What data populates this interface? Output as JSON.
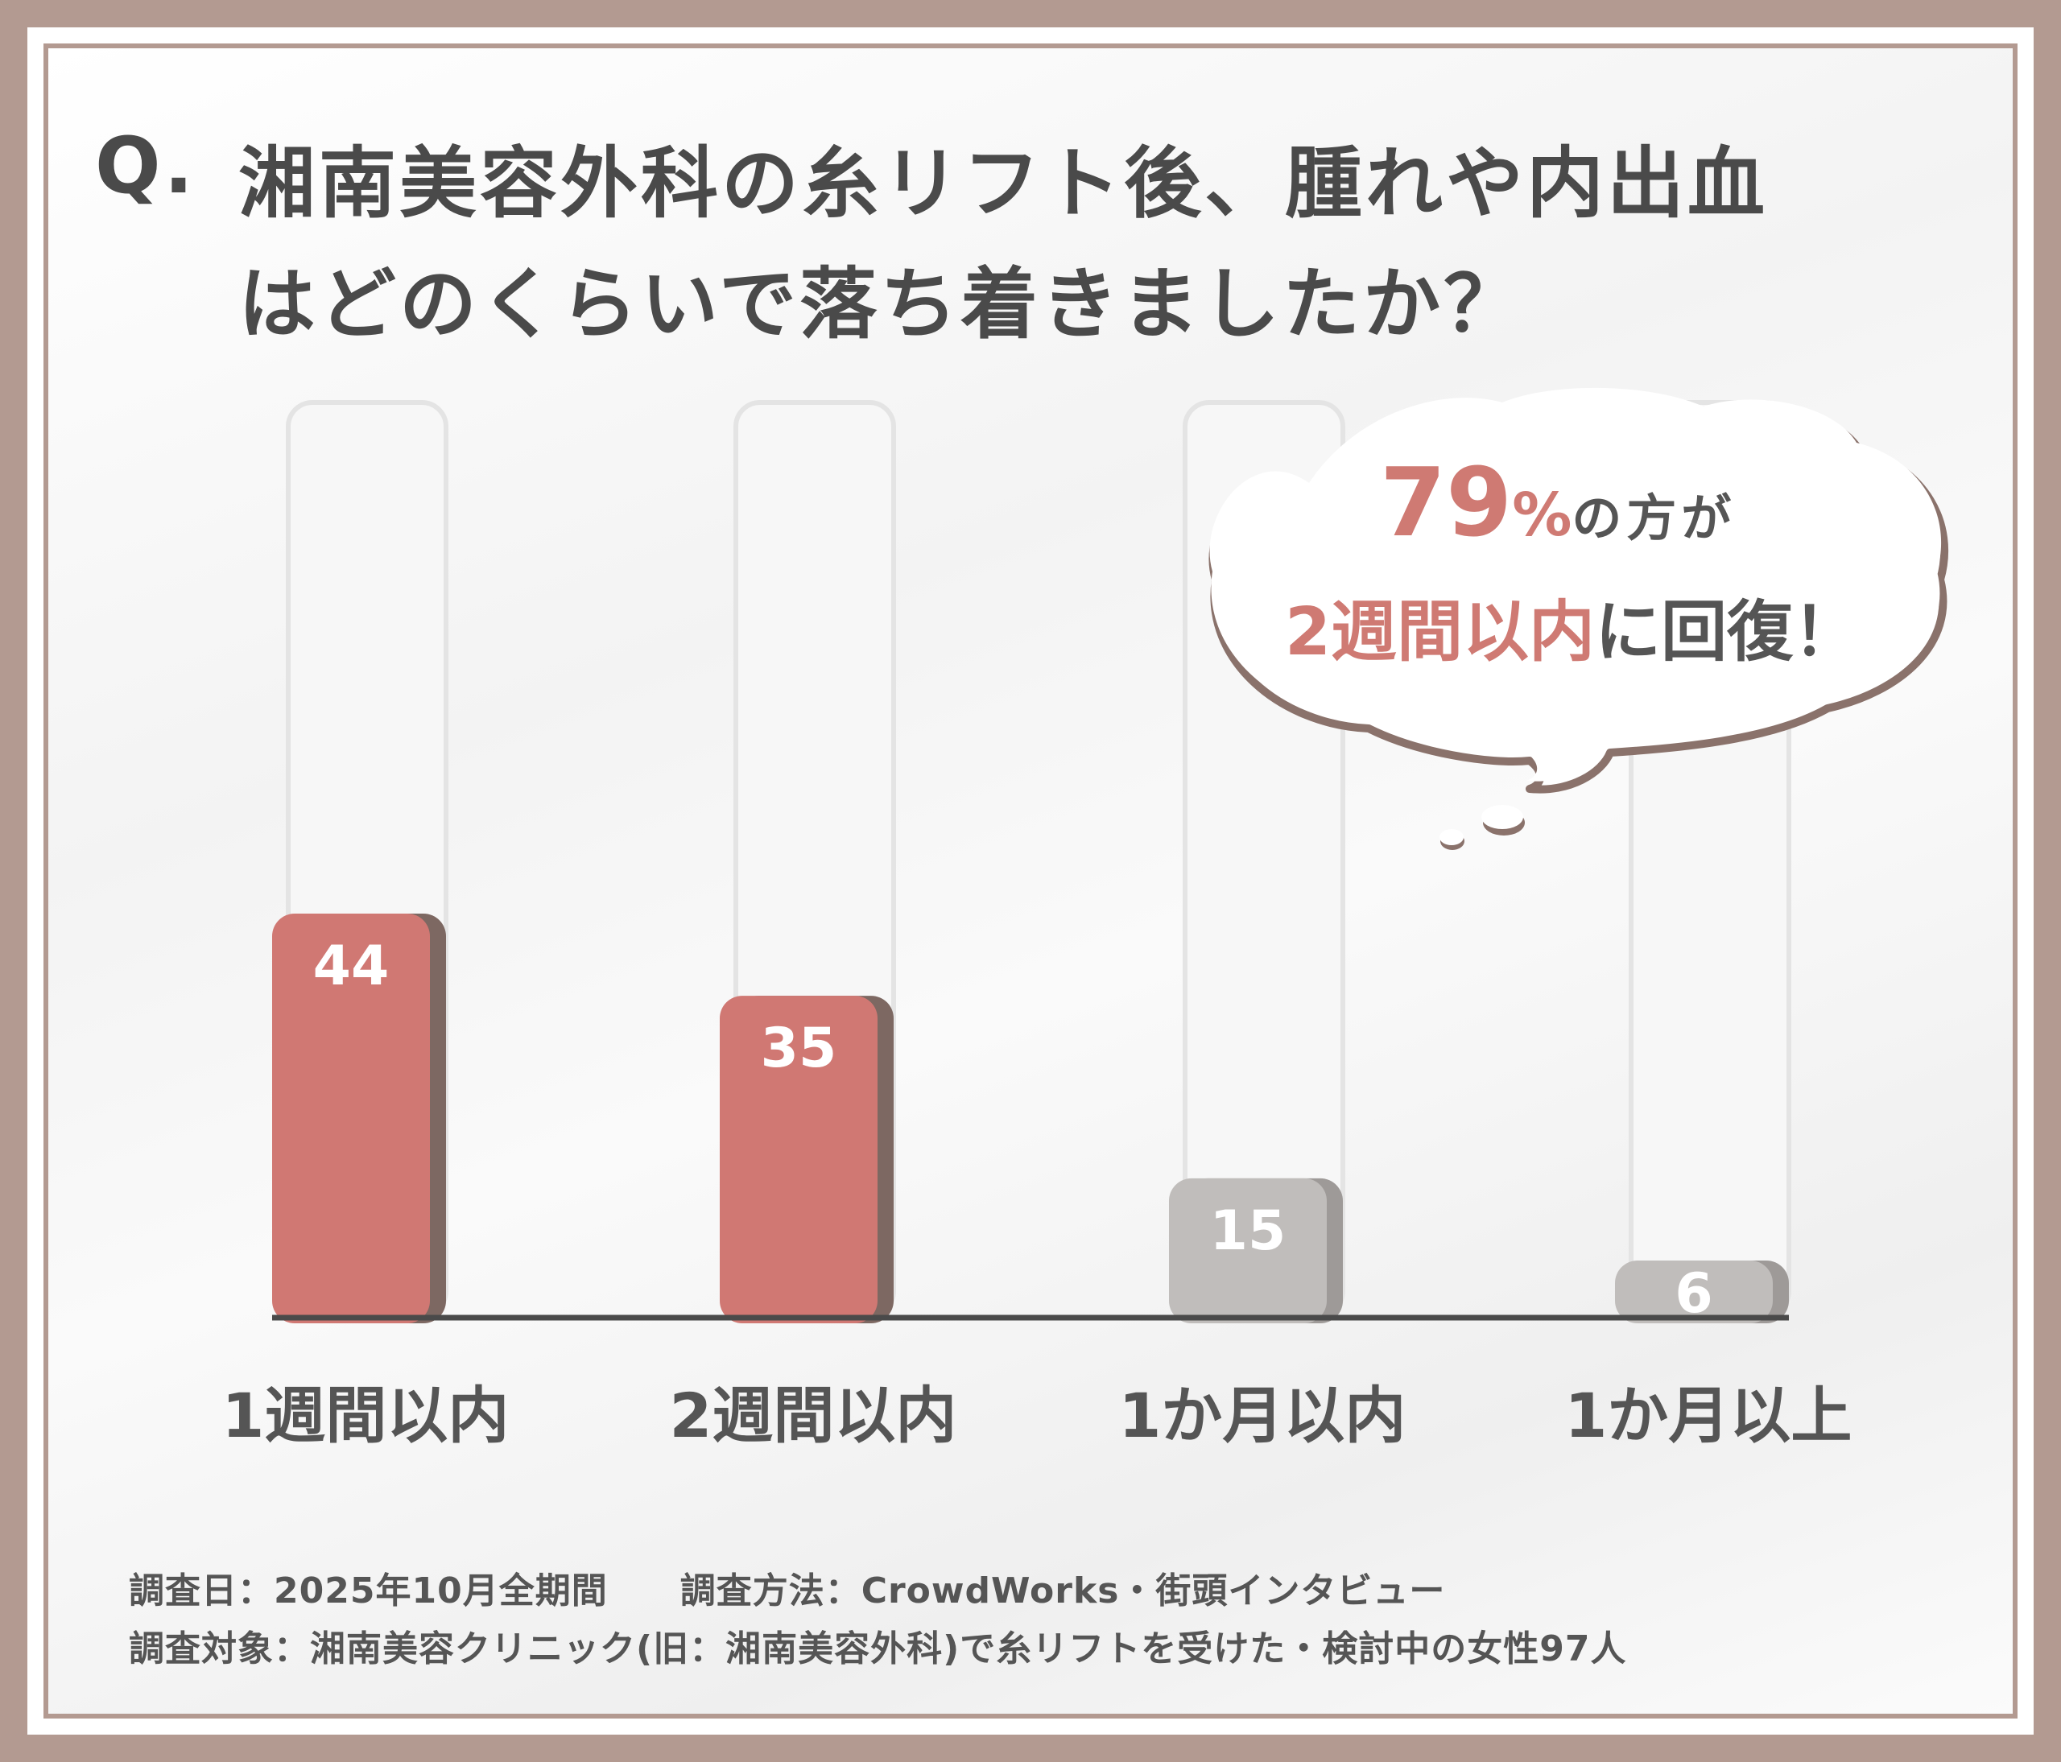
{
  "title": {
    "prefix": "Q.",
    "line1": "湘南美容外科の糸リフト後、腫れや内出血",
    "line2": "はどのくらいで落ち着きましたか？"
  },
  "chart_data": {
    "type": "bar",
    "categories": [
      "1週間以内",
      "2週間以内",
      "1か月以内",
      "1か月以上"
    ],
    "values": [
      44,
      35,
      15,
      6
    ],
    "ylim": [
      0,
      100
    ],
    "grid": false,
    "colors": {
      "highlight": "#d07873",
      "highlight_shadow": "#7d6862",
      "muted": "#c0bdbb",
      "muted_shadow": "#9e9a98",
      "axis": "#4a4a4a"
    },
    "highlighted": [
      true,
      true,
      false,
      false
    ]
  },
  "callout": {
    "percent": "79",
    "percent_sign": "%",
    "line1_rest": "の方が",
    "line2_highlight": "2週間以内",
    "line2_rest": "に回復！"
  },
  "footnotes": {
    "line1": "調査日：2025年10月全期間　　調査方法：CrowdWorks・街頭インタビュー",
    "line2": "調査対象：湘南美容クリニック(旧：湘南美容外科)で糸リフトを受けた・検討中の女性97人"
  }
}
